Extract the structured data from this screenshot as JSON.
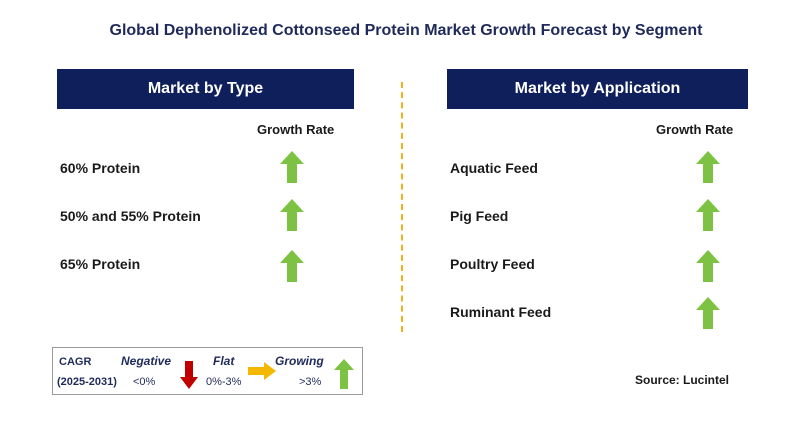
{
  "title": "Global Dephenolized Cottonseed Protein Market Growth Forecast by Segment",
  "left_panel": {
    "header": "Market by Type",
    "column_label": "Growth Rate",
    "rows": [
      {
        "label": "60% Protein",
        "trend": "growing"
      },
      {
        "label": "50% and 55% Protein",
        "trend": "growing"
      },
      {
        "label": "65% Protein",
        "trend": "growing"
      }
    ]
  },
  "right_panel": {
    "header": "Market by Application",
    "column_label": "Growth Rate",
    "rows": [
      {
        "label": "Aquatic Feed",
        "trend": "growing"
      },
      {
        "label": "Pig Feed",
        "trend": "growing"
      },
      {
        "label": "Poultry Feed",
        "trend": "growing"
      },
      {
        "label": "Ruminant Feed",
        "trend": "growing"
      }
    ]
  },
  "legend": {
    "cagr_label": "CAGR",
    "period": "(2025-2031)",
    "negative_label": "Negative",
    "negative_range": "<0%",
    "flat_label": "Flat",
    "flat_range": "0%-3%",
    "growing_label": "Growing",
    "growing_range": ">3%"
  },
  "source": "Source: Lucintel",
  "colors": {
    "header_bg": "#0e1f5b",
    "up_arrow": "#7dc242",
    "down_arrow": "#c00000",
    "flat_arrow": "#f5b800",
    "divider": "#f0b21a"
  }
}
